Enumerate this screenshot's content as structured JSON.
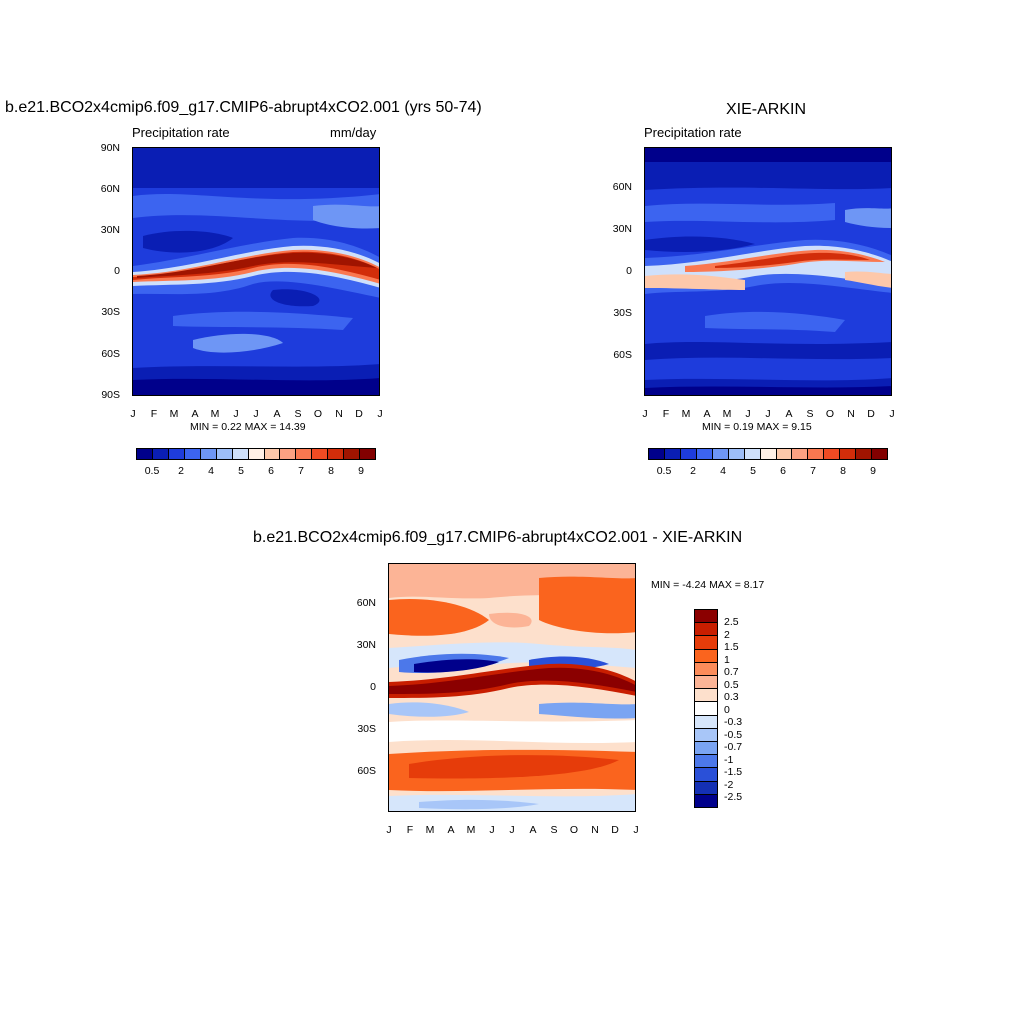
{
  "colors": {
    "seq": [
      "#00008b",
      "#0a1eb4",
      "#1e3cdc",
      "#3c64f0",
      "#6e96f5",
      "#9ebef8",
      "#cfe0fb",
      "#fff0e6",
      "#fdc8aa",
      "#fca182",
      "#fa7850",
      "#f04b23",
      "#d22d0a",
      "#a01400",
      "#820000"
    ],
    "div": [
      "#8b0000",
      "#c81e00",
      "#e63c0a",
      "#fa641e",
      "#fc8c5a",
      "#fcb496",
      "#fde0cc",
      "#ffffff",
      "#d6e6fb",
      "#a8c6f8",
      "#7aa4f2",
      "#4c78ea",
      "#2a50d8",
      "#1430b4",
      "#00008b"
    ]
  },
  "panels": {
    "a": {
      "title": "b.e21.BCO2x4cmip6.f09_g17.CMIP6-abrupt4xCO2.001 (yrs 50-74)",
      "left_label": "Precipitation rate",
      "right_label": "mm/day",
      "stats": "MIN =   0.22 MAX =  14.39",
      "y_ticks": [
        "90N",
        "60N",
        "30N",
        "0",
        "30S",
        "60S",
        "90S"
      ],
      "x_ticks": [
        "J",
        "F",
        "M",
        "A",
        "M",
        "J",
        "J",
        "A",
        "S",
        "O",
        "N",
        "D",
        "J"
      ],
      "cbar_labels": [
        "0.5",
        "2",
        "4",
        "5",
        "6",
        "7",
        "8",
        "9"
      ]
    },
    "b": {
      "title": "XIE-ARKIN",
      "left_label": "Precipitation rate",
      "stats": "MIN =   0.19 MAX =   9.15",
      "y_ticks": [
        "60N",
        "30N",
        "0",
        "30S",
        "60S"
      ],
      "x_ticks": [
        "J",
        "F",
        "M",
        "A",
        "M",
        "J",
        "J",
        "A",
        "S",
        "O",
        "N",
        "D",
        "J"
      ],
      "cbar_labels": [
        "0.5",
        "2",
        "4",
        "5",
        "6",
        "7",
        "8",
        "9"
      ]
    },
    "c": {
      "title": "b.e21.BCO2x4cmip6.f09_g17.CMIP6-abrupt4xCO2.001 - XIE-ARKIN",
      "stats": "MIN =  -4.24 MAX =   8.17",
      "y_ticks": [
        "60N",
        "30N",
        "0",
        "30S",
        "60S"
      ],
      "x_ticks": [
        "J",
        "F",
        "M",
        "A",
        "M",
        "J",
        "J",
        "A",
        "S",
        "O",
        "N",
        "D",
        "J"
      ],
      "cbar_labels": [
        "2.5",
        "2",
        "1.5",
        "1",
        "0.7",
        "0.5",
        "0.3",
        "0",
        "-0.3",
        "-0.5",
        "-0.7",
        "-1",
        "-1.5",
        "-2",
        "-2.5"
      ]
    }
  }
}
